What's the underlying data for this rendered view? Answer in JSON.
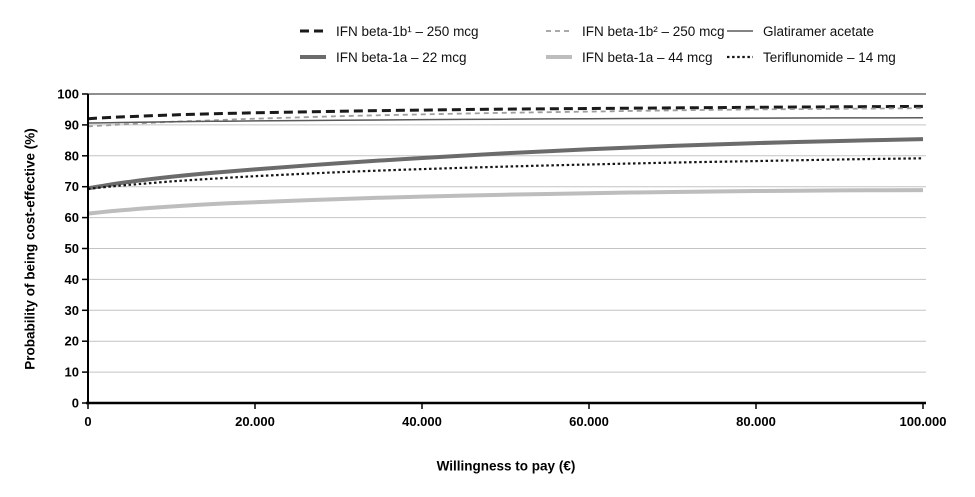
{
  "chart_data": {
    "type": "line",
    "title": "",
    "xlabel": "Willingness to pay (€)",
    "ylabel": "Probability of being cost-effective (%)",
    "xlim": [
      0,
      100000
    ],
    "ylim": [
      0,
      100
    ],
    "x_tick_values": [
      0,
      20000,
      40000,
      60000,
      80000,
      100000
    ],
    "x_tick_labels": [
      "0",
      "20.000",
      "40.000",
      "60.000",
      "80.000",
      "100.000"
    ],
    "y_tick_values": [
      0,
      10,
      20,
      30,
      40,
      50,
      60,
      70,
      80,
      90,
      100
    ],
    "y_tick_labels": [
      "0",
      "10",
      "20",
      "30",
      "40",
      "50",
      "60",
      "70",
      "80",
      "90",
      "100"
    ],
    "grid": "horizontal",
    "gridline_color": "#c4c4c4",
    "axis_color": "#000000",
    "plot_top_border_color": "#4a4a4a",
    "legend_position": "top",
    "x": [
      0,
      2500,
      5000,
      10000,
      15000,
      20000,
      30000,
      40000,
      50000,
      60000,
      70000,
      80000,
      90000,
      100000
    ],
    "series": [
      {
        "name": "IFN beta-1b¹ – 250 mcg",
        "values": [
          92.0,
          92.4,
          92.7,
          93.2,
          93.6,
          93.9,
          94.4,
          94.8,
          95.1,
          95.3,
          95.5,
          95.7,
          95.85,
          96.0
        ],
        "color": "#1a1a1a",
        "width": 3,
        "dash": "9 5",
        "style": "dashed"
      },
      {
        "name": "IFN beta-1b² – 250 mcg",
        "values": [
          89.5,
          89.9,
          90.3,
          91.0,
          91.5,
          92.0,
          92.8,
          93.4,
          93.9,
          94.3,
          94.7,
          95.0,
          95.2,
          95.4
        ],
        "color": "#9e9e9e",
        "width": 1.8,
        "dash": "5 4",
        "style": "dashed"
      },
      {
        "name": "Glatiramer acetate",
        "values": [
          90.6,
          90.7,
          90.8,
          91.0,
          91.15,
          91.3,
          91.5,
          91.7,
          91.85,
          92.0,
          92.1,
          92.2,
          92.25,
          92.3
        ],
        "color": "#5a5a5a",
        "width": 1.5,
        "dash": "",
        "style": "solid"
      },
      {
        "name": "IFN beta-1a – 22 mcg",
        "values": [
          69.5,
          70.6,
          71.6,
          73.2,
          74.5,
          75.6,
          77.6,
          79.3,
          80.8,
          82.1,
          83.2,
          84.1,
          84.8,
          85.4
        ],
        "color": "#6b6b6b",
        "width": 4,
        "dash": "",
        "style": "solid"
      },
      {
        "name": "IFN beta-1a – 44 mcg",
        "values": [
          61.3,
          62.0,
          62.6,
          63.6,
          64.4,
          65.0,
          66.0,
          66.8,
          67.4,
          67.9,
          68.3,
          68.6,
          68.8,
          68.9
        ],
        "color": "#bdbdbd",
        "width": 4,
        "dash": "",
        "style": "solid"
      },
      {
        "name": "Teriflunomide – 14 mg",
        "values": [
          69.3,
          70.0,
          70.6,
          71.7,
          72.6,
          73.4,
          74.7,
          75.7,
          76.5,
          77.2,
          77.8,
          78.3,
          78.8,
          79.2
        ],
        "color": "#141414",
        "width": 2.2,
        "dash": "2.5 2.6",
        "style": "dotted"
      }
    ]
  }
}
